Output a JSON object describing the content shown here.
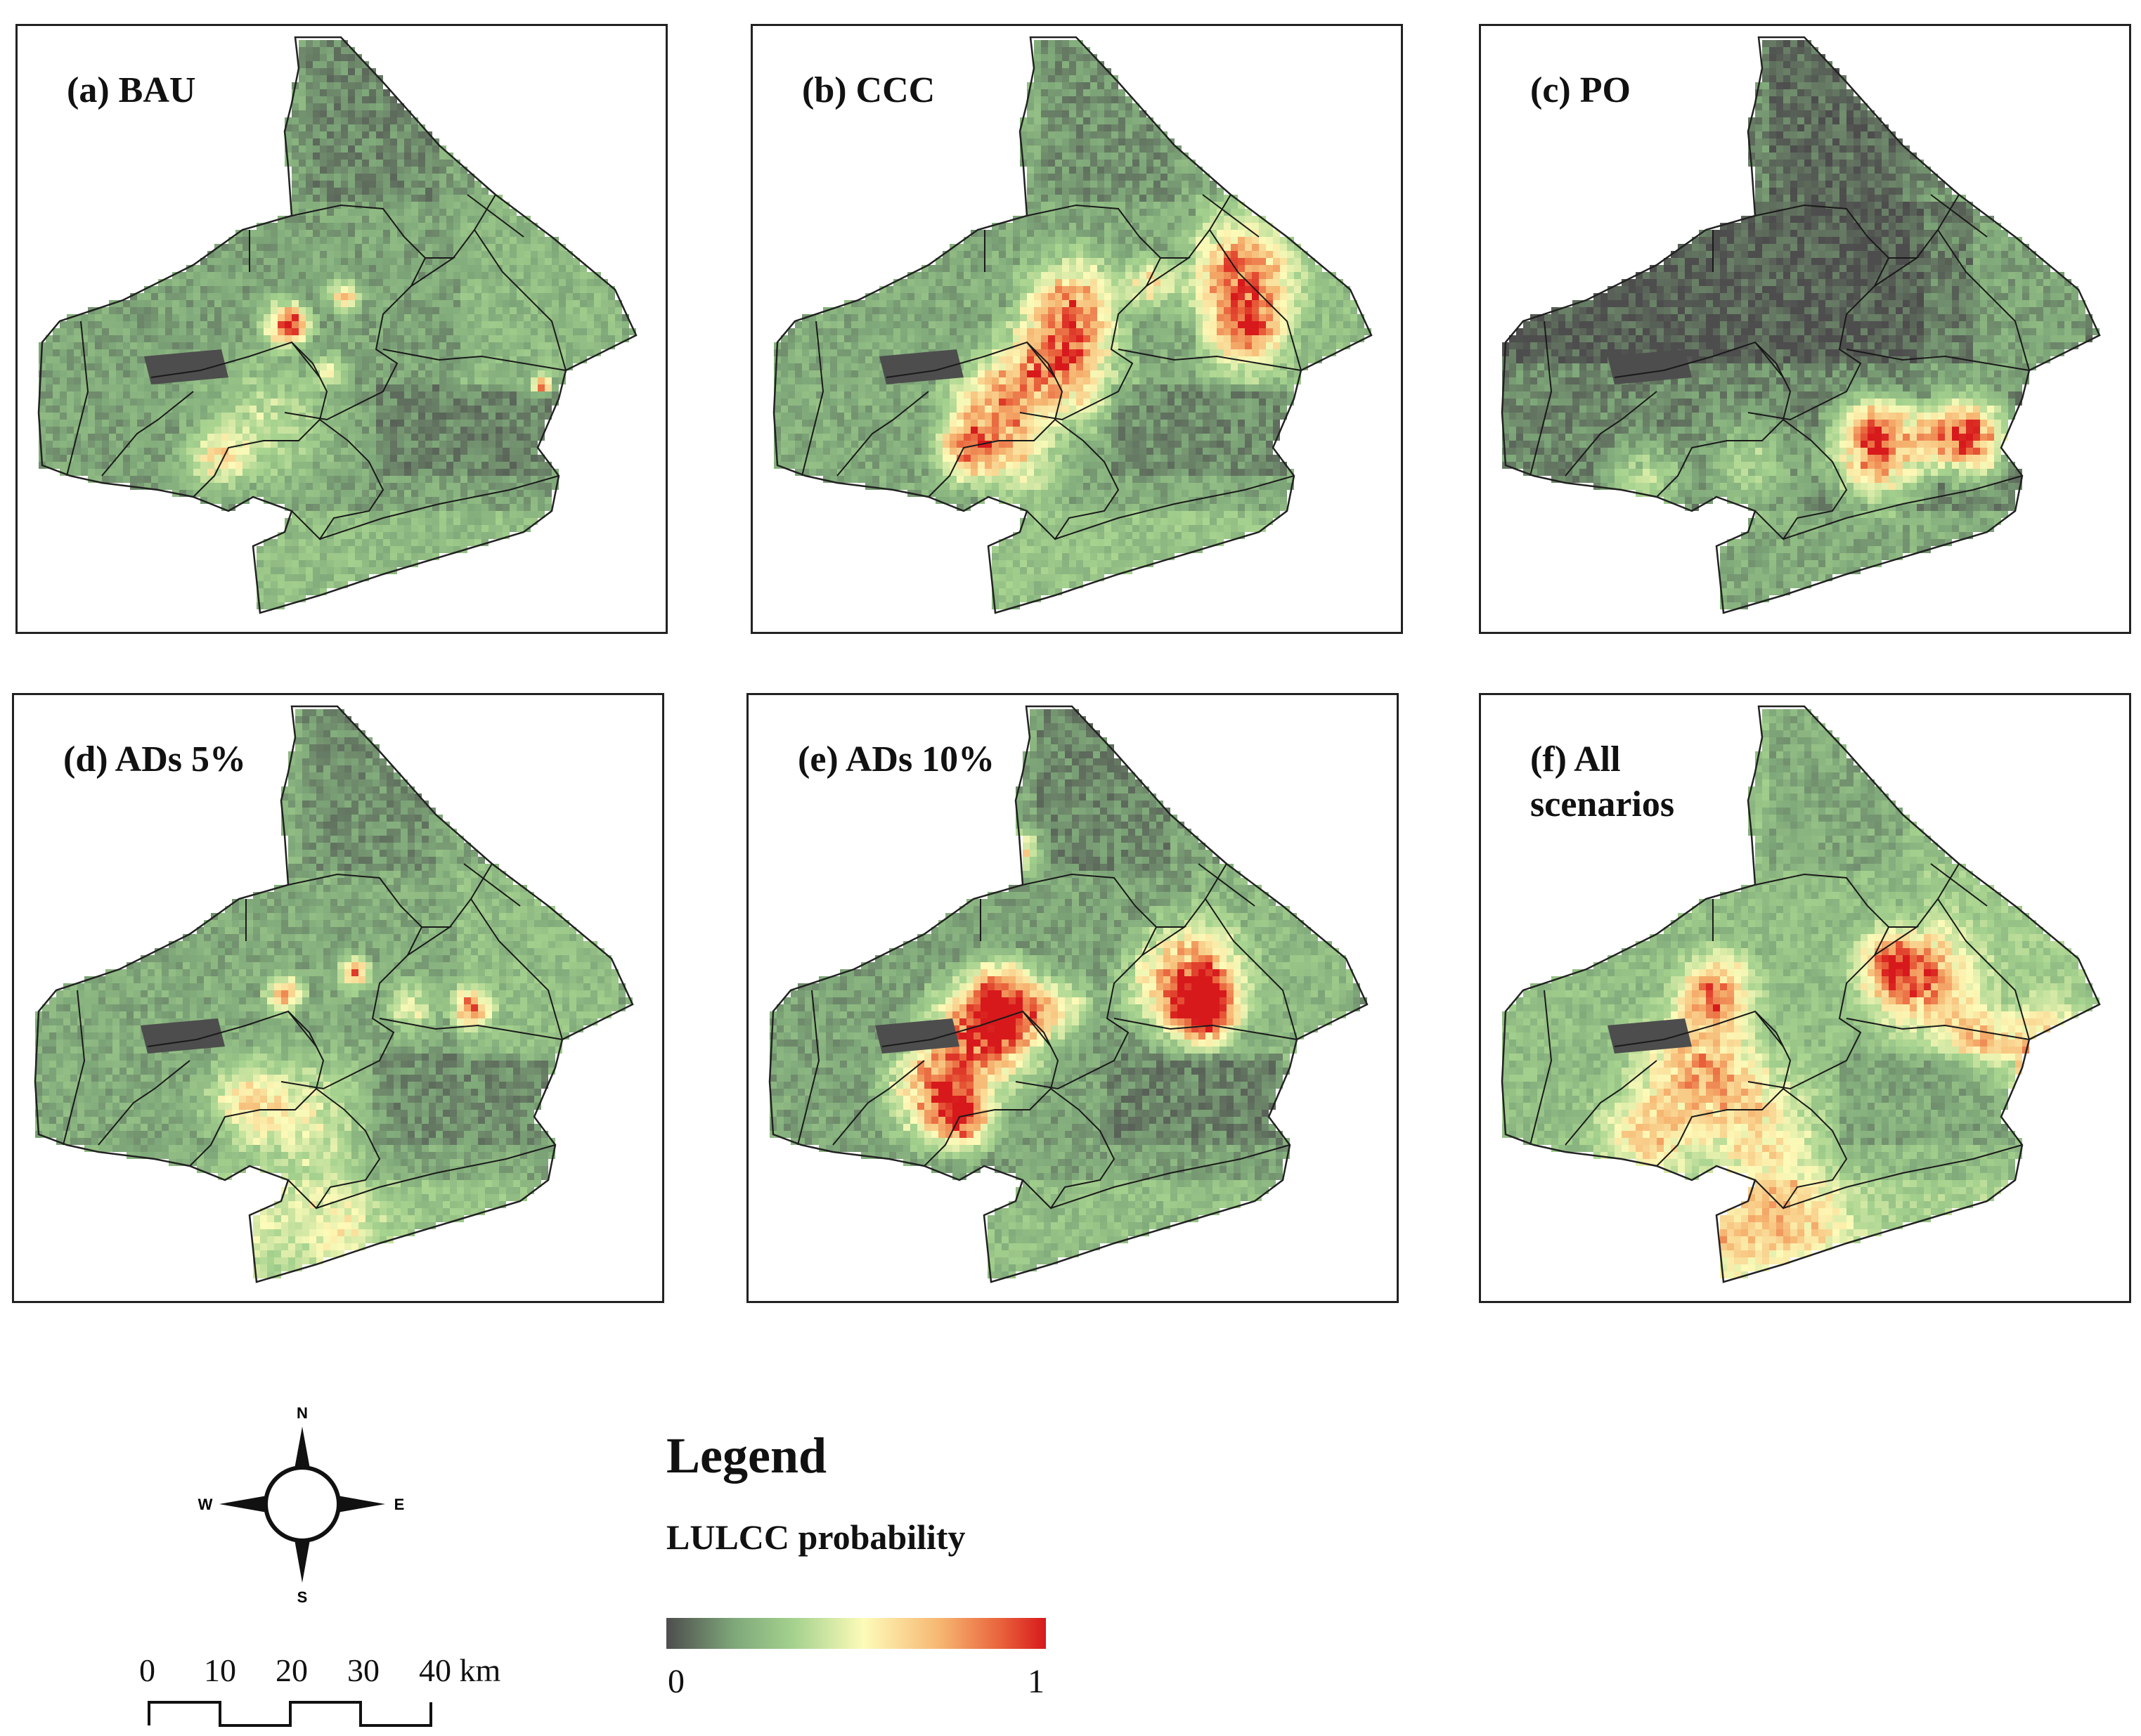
{
  "panels": [
    {
      "id": "a",
      "label": "(a) BAU",
      "label_lines": [
        "(a) BAU"
      ]
    },
    {
      "id": "b",
      "label": "(b) CCC",
      "label_lines": [
        "(b) CCC"
      ]
    },
    {
      "id": "c",
      "label": "(c) PO",
      "label_lines": [
        "(c) PO"
      ]
    },
    {
      "id": "d",
      "label": "(d) ADs 5%",
      "label_lines": [
        "(d) ADs 5%"
      ]
    },
    {
      "id": "e",
      "label": "(e) ADs 10%",
      "label_lines": [
        "(e) ADs 10%"
      ]
    },
    {
      "id": "f",
      "label": "(f) All scenarios",
      "label_lines": [
        "(f) All",
        "scenarios"
      ]
    }
  ],
  "legend": {
    "title": "Legend",
    "subtitle": "LULCC probability",
    "min_label": "0",
    "max_label": "1",
    "colors": [
      "#4d4d4d",
      "#7fa87a",
      "#a6d38f",
      "#fdfbb9",
      "#f6b772",
      "#e9633c",
      "#d7191c"
    ]
  },
  "compass": {
    "n": "N",
    "s": "S",
    "e": "E",
    "w": "W"
  },
  "scale_bar": {
    "ticks": [
      "0",
      "10",
      "20",
      "30",
      "40 km"
    ]
  }
}
